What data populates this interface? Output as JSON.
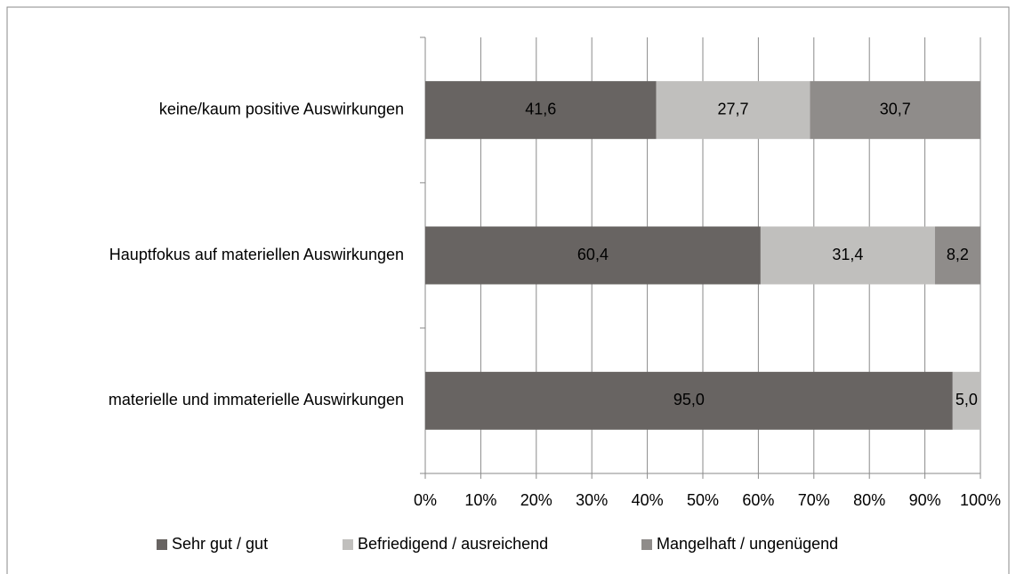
{
  "chart_data": {
    "type": "bar",
    "orientation": "horizontal",
    "stacked": true,
    "categories": [
      "keine/kaum positive Auswirkungen",
      "Hauptfokus auf materiellen Auswirkungen",
      "materielle und immaterielle Auswirkungen"
    ],
    "series": [
      {
        "name": "Sehr gut / gut",
        "color": "#686462",
        "values": [
          41.6,
          60.4,
          95.0
        ],
        "value_labels": [
          "41,6",
          "60,4",
          "95,0"
        ]
      },
      {
        "name": "Befriedigend / ausreichend",
        "color": "#c0bfbd",
        "values": [
          27.7,
          31.4,
          5.0
        ],
        "value_labels": [
          "27,7",
          "31,4",
          "5,0"
        ]
      },
      {
        "name": "Mangelhaft / ungenügend",
        "color": "#8f8c8a",
        "values": [
          30.7,
          8.2,
          null
        ],
        "value_labels": [
          "30,7",
          "8,2",
          null
        ]
      }
    ],
    "xlim": [
      0,
      100
    ],
    "xticks": [
      {
        "value": 0,
        "label": "0%"
      },
      {
        "value": 10,
        "label": "10%"
      },
      {
        "value": 20,
        "label": "20%"
      },
      {
        "value": 30,
        "label": "30%"
      },
      {
        "value": 40,
        "label": "40%"
      },
      {
        "value": 50,
        "label": "50%"
      },
      {
        "value": 60,
        "label": "60%"
      },
      {
        "value": 70,
        "label": "70%"
      },
      {
        "value": 80,
        "label": "80%"
      },
      {
        "value": 90,
        "label": "90%"
      },
      {
        "value": 100,
        "label": "100%"
      }
    ],
    "grid": true,
    "legend": "bottom"
  }
}
